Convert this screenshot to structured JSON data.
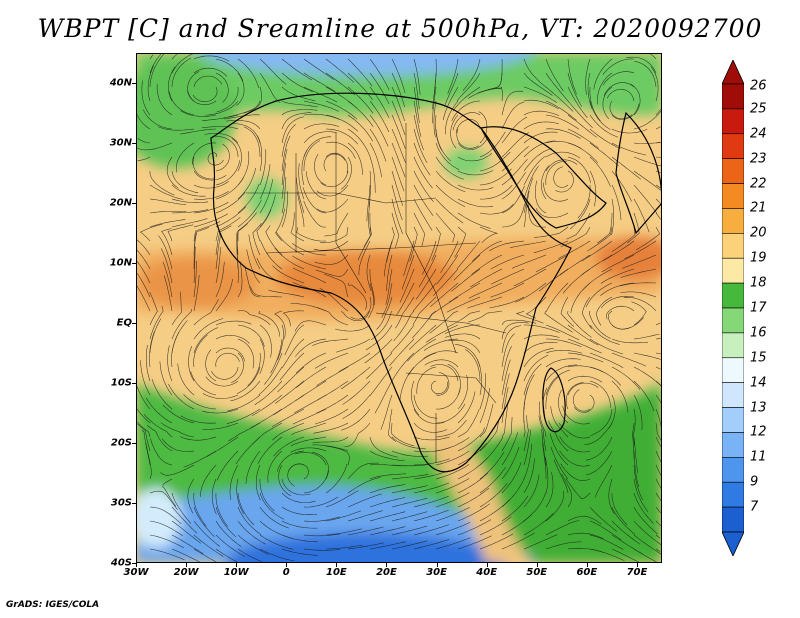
{
  "title": "WBPT [C] and Sreamline at 500hPa, VT: 2020092700",
  "credit": "GrADS: IGES/COLA",
  "map": {
    "lon_range": [
      -30,
      75
    ],
    "lat_range": [
      -40,
      45
    ],
    "lat_labels": [
      {
        "lat": 40,
        "text": "40N"
      },
      {
        "lat": 30,
        "text": "30N"
      },
      {
        "lat": 20,
        "text": "20N"
      },
      {
        "lat": 10,
        "text": "10N"
      },
      {
        "lat": 0,
        "text": "EQ"
      },
      {
        "lat": -10,
        "text": "10S"
      },
      {
        "lat": -20,
        "text": "20S"
      },
      {
        "lat": -30,
        "text": "30S"
      },
      {
        "lat": -40,
        "text": "40S"
      }
    ],
    "lon_labels": [
      {
        "lon": -30,
        "text": "30W"
      },
      {
        "lon": -20,
        "text": "20W"
      },
      {
        "lon": -10,
        "text": "10W"
      },
      {
        "lon": 0,
        "text": "0"
      },
      {
        "lon": 10,
        "text": "10E"
      },
      {
        "lon": 20,
        "text": "20E"
      },
      {
        "lon": 30,
        "text": "30E"
      },
      {
        "lon": 40,
        "text": "40E"
      },
      {
        "lon": 50,
        "text": "50E"
      },
      {
        "lon": 60,
        "text": "60E"
      },
      {
        "lon": 70,
        "text": "70E"
      }
    ]
  },
  "colorbar": {
    "labels": [
      "7",
      "9",
      "11",
      "12",
      "13",
      "14",
      "15",
      "16",
      "17",
      "18",
      "19",
      "20",
      "21",
      "22",
      "23",
      "24",
      "25",
      "26"
    ],
    "colors": [
      "#1c5fd1",
      "#2f7ae3",
      "#4e95ee",
      "#79b2f5",
      "#a3cdfa",
      "#cfe6fd",
      "#eef9fe",
      "#c8f0bf",
      "#85d778",
      "#46b83c",
      "#fde9a6",
      "#fbd279",
      "#f8ae3f",
      "#f48b22",
      "#ec6417",
      "#df3a12",
      "#c81a0e",
      "#a00c08"
    ]
  }
}
